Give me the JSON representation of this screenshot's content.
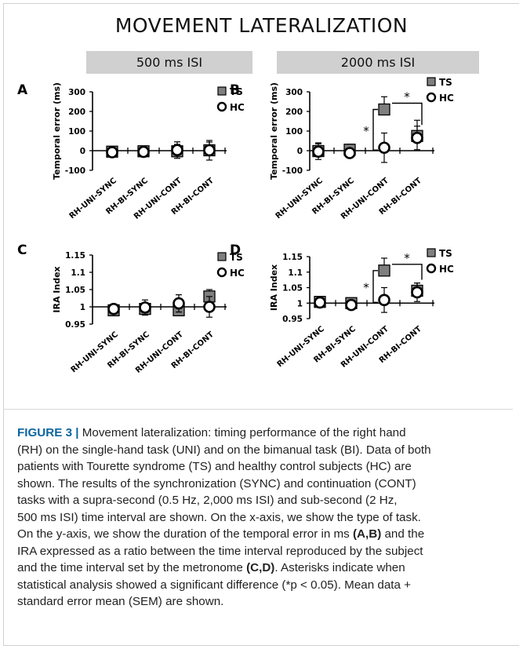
{
  "figure": {
    "title": "MOVEMENT LATERALIZATION",
    "isi_headers": [
      "500 ms ISI",
      "2000 ms ISI"
    ],
    "legend": {
      "ts": "TS",
      "hc": "HC"
    },
    "colors": {
      "ts": "#7f7f7f",
      "hc": "#ffffff",
      "stroke": "#000000"
    }
  },
  "chart_data": [
    {
      "panel": "A",
      "type": "scatter",
      "ylabel": "Temporal error (ms)",
      "yticks": [
        "300",
        "200",
        "100",
        "0",
        "-100"
      ],
      "ylim": [
        -100,
        300
      ],
      "categories": [
        "RH-UNI-SYNC",
        "RH-BI-SYNC",
        "RH-UNI-CONT",
        "RH-BI-CONT"
      ],
      "series": [
        {
          "name": "TS",
          "values": [
            -5,
            -3,
            -3,
            2
          ],
          "errors": [
            22,
            18,
            35,
            42
          ]
        },
        {
          "name": "HC",
          "values": [
            -8,
            -6,
            3,
            2
          ],
          "errors": [
            22,
            20,
            42,
            50
          ]
        }
      ],
      "significance": []
    },
    {
      "panel": "B",
      "type": "scatter",
      "ylabel": "Temporal error (ms)",
      "yticks": [
        "300",
        "200",
        "100",
        "0",
        "-100"
      ],
      "ylim": [
        -100,
        300
      ],
      "categories": [
        "RH-UNI-SYNC",
        "RH-BI-SYNC",
        "RH-UNI-CONT",
        "RH-BI-CONT"
      ],
      "series": [
        {
          "name": "TS",
          "values": [
            -2,
            5,
            210,
            75
          ],
          "errors": [
            42,
            28,
            65,
            80
          ]
        },
        {
          "name": "HC",
          "values": [
            -5,
            -12,
            15,
            65
          ],
          "errors": [
            40,
            15,
            75,
            60
          ]
        }
      ],
      "significance": [
        {
          "label": "*",
          "from": "RH-BI-SYNC",
          "to": "RH-UNI-CONT"
        },
        {
          "label": "*",
          "from": "RH-UNI-CONT",
          "to": "RH-BI-CONT"
        }
      ]
    },
    {
      "panel": "C",
      "type": "scatter",
      "ylabel": "IRA Index",
      "yticks": [
        "1.15",
        "1.1",
        "1.05",
        "1",
        "0.95"
      ],
      "ylim": [
        0.95,
        1.15
      ],
      "categories": [
        "RH-UNI-SYNC",
        "RH-BI-SYNC",
        "RH-UNI-CONT",
        "RH-BI-CONT"
      ],
      "series": [
        {
          "name": "TS",
          "values": [
            0.99,
            0.994,
            0.99,
            1.03
          ],
          "errors": [
            0.01,
            0.012,
            0.015,
            0.02
          ]
        },
        {
          "name": "HC",
          "values": [
            0.994,
            0.998,
            1.01,
            1.0
          ],
          "errors": [
            0.01,
            0.022,
            0.025,
            0.03
          ]
        }
      ],
      "significance": []
    },
    {
      "panel": "D",
      "type": "scatter",
      "ylabel": "IRA Index",
      "yticks": [
        "1.15",
        "1.1",
        "1.05",
        "1",
        "0.95"
      ],
      "ylim": [
        0.95,
        1.15
      ],
      "categories": [
        "RH-UNI-SYNC",
        "RH-BI-SYNC",
        "RH-UNI-CONT",
        "RH-BI-CONT"
      ],
      "series": [
        {
          "name": "TS",
          "values": [
            1.004,
            1.0,
            1.105,
            1.04
          ],
          "errors": [
            0.012,
            0.012,
            0.04,
            0.025
          ]
        },
        {
          "name": "HC",
          "values": [
            1.002,
            0.994,
            1.01,
            1.035
          ],
          "errors": [
            0.012,
            0.008,
            0.04,
            0.03
          ]
        }
      ],
      "significance": [
        {
          "label": "*",
          "from": "RH-BI-SYNC",
          "to": "RH-UNI-CONT"
        },
        {
          "label": "*",
          "from": "RH-UNI-CONT",
          "to": "RH-BI-CONT"
        }
      ]
    }
  ],
  "caption": {
    "label": "FIGURE 3 |",
    "lines": [
      [
        {
          "t": "Movement lateralization: timing performance of the right hand"
        }
      ],
      [
        {
          "t": "(RH) on the single-hand task (UNI) and on the bimanual task (BI). Data of both"
        }
      ],
      [
        {
          "t": "patients with Tourette syndrome (TS) and healthy control subjects (HC) are"
        }
      ],
      [
        {
          "t": "shown. The results of the synchronization (SYNC) and continuation (CONT)"
        }
      ],
      [
        {
          "t": "tasks with a supra-second (0.5 Hz, 2,000 ms ISI) and sub-second (2 Hz,"
        }
      ],
      [
        {
          "t": "500 ms ISI) time interval are shown. On the x-axis, we show the type of task."
        }
      ],
      [
        {
          "t": "On the y-axis, we show the duration of the temporal error in ms "
        },
        {
          "t": "(A,B)",
          "b": true
        },
        {
          "t": " and the"
        }
      ],
      [
        {
          "t": "IRA expressed as a ratio between the time interval reproduced by the subject"
        }
      ],
      [
        {
          "t": "and the time interval set by the metronome "
        },
        {
          "t": "(C,D)",
          "b": true
        },
        {
          "t": ". Asterisks indicate when"
        }
      ],
      [
        {
          "t": "statistical analysis showed a significant difference (*p < 0.05). Mean data +"
        }
      ],
      [
        {
          "t": "standard error mean (SEM) are shown."
        }
      ]
    ]
  }
}
